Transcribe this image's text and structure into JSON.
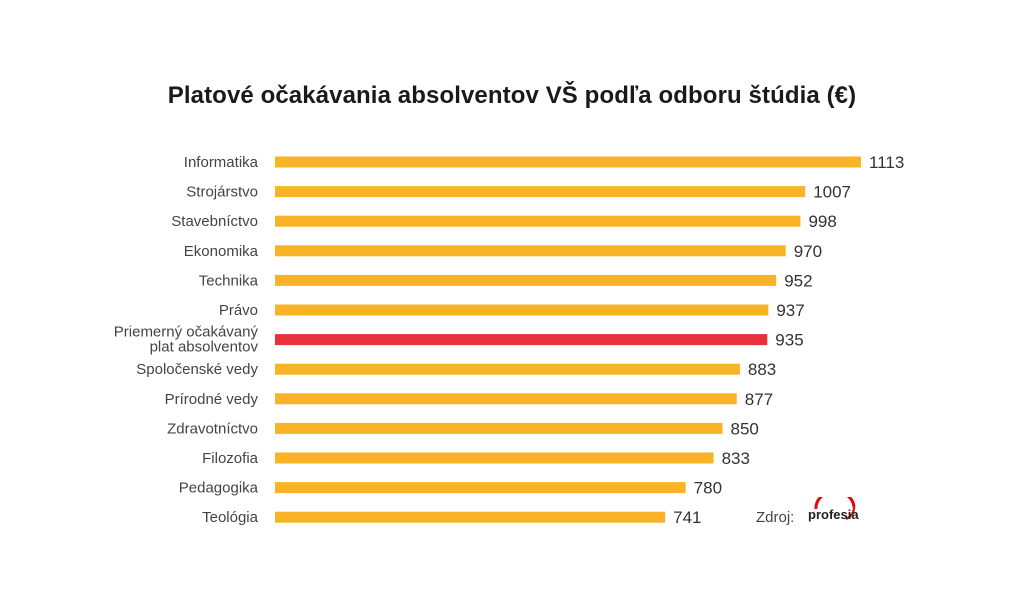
{
  "title": "Platové očakávania absolventov VŠ podľa odboru štúdia (€)",
  "source": {
    "label": "Zdroj:",
    "logo_text": "profesia"
  },
  "colors": {
    "bar": "#f9b327",
    "highlight": "#e8323a",
    "logo_red": "#e30613"
  },
  "chart_data": {
    "type": "bar",
    "orientation": "horizontal",
    "title": "Platové očakávania absolventov VŠ podľa odboru štúdia (€)",
    "categories": [
      [
        "Informatika"
      ],
      [
        "Strojárstvo"
      ],
      [
        "Stavebníctvo"
      ],
      [
        "Ekonomika"
      ],
      [
        "Technika"
      ],
      [
        "Právo"
      ],
      [
        "Priemerný očakávaný",
        "plat absolventov"
      ],
      [
        "Spoločenské vedy"
      ],
      [
        "Prírodné vedy"
      ],
      [
        "Zdravotníctvo"
      ],
      [
        "Filozofia"
      ],
      [
        "Pedagogika"
      ],
      [
        "Teológia"
      ]
    ],
    "values": [
      1113,
      1007,
      998,
      970,
      952,
      937,
      935,
      883,
      877,
      850,
      833,
      780,
      741
    ],
    "highlight_index": 6,
    "xlim": [
      0,
      1113
    ],
    "grid": false,
    "legend": "none"
  }
}
